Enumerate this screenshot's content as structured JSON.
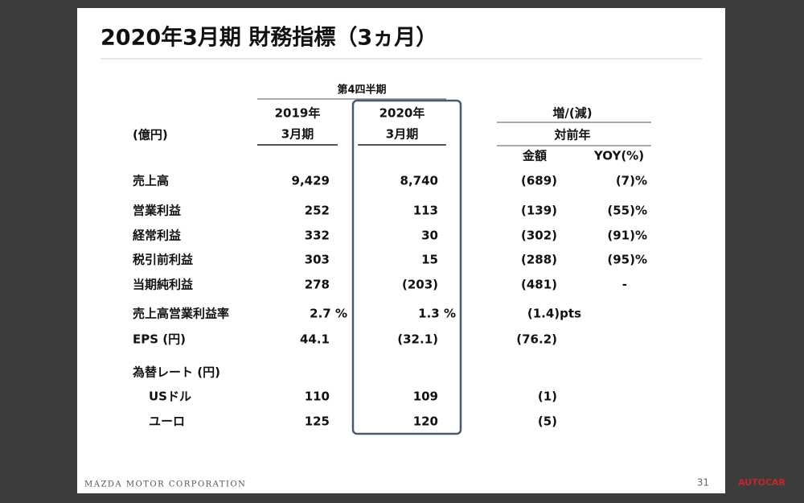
{
  "title": "2020年3月期 財務指標（3ヵ月）",
  "table": {
    "group_header": "第4四半期",
    "unit": "(億円)",
    "columns": [
      {
        "year": "2019年",
        "period": "3月期"
      },
      {
        "year": "2020年",
        "period": "3月期"
      }
    ],
    "change_header": "増/(減)",
    "change_sub": "対前年",
    "change_columns": [
      "金額",
      "YOY(%)"
    ],
    "rows": [
      {
        "label": "売上高",
        "cells": [
          "9,429",
          "8,740",
          "(689)",
          "(7)%"
        ]
      },
      {
        "label": "営業利益",
        "cells": [
          "252",
          "113",
          "(139)",
          "(55)%"
        ]
      },
      {
        "label": "経常利益",
        "cells": [
          "332",
          "30",
          "(302)",
          "(91)%"
        ]
      },
      {
        "label": "税引前利益",
        "cells": [
          "303",
          "15",
          "(288)",
          "(95)%"
        ]
      },
      {
        "label": "当期純利益",
        "cells": [
          "278",
          "(203)",
          "(481)",
          "-"
        ]
      },
      {
        "label": "売上高営業利益率",
        "cells": [
          "2.7 %",
          "1.3 %",
          "(1.4)pts",
          null
        ]
      },
      {
        "label": "EPS (円)",
        "cells": [
          "44.1",
          "(32.1)",
          "(76.2)",
          null
        ]
      }
    ],
    "section": {
      "label": "為替レート (円)",
      "rows": [
        {
          "label": "USドル",
          "cells": [
            "110",
            "109",
            "(1)",
            null
          ]
        },
        {
          "label": "ユーロ",
          "cells": [
            "125",
            "120",
            "(5)",
            null
          ]
        }
      ]
    }
  },
  "footer": {
    "company": "MAZDA MOTOR CORPORATION",
    "page": "31",
    "watermark": "AUTOCAR"
  }
}
